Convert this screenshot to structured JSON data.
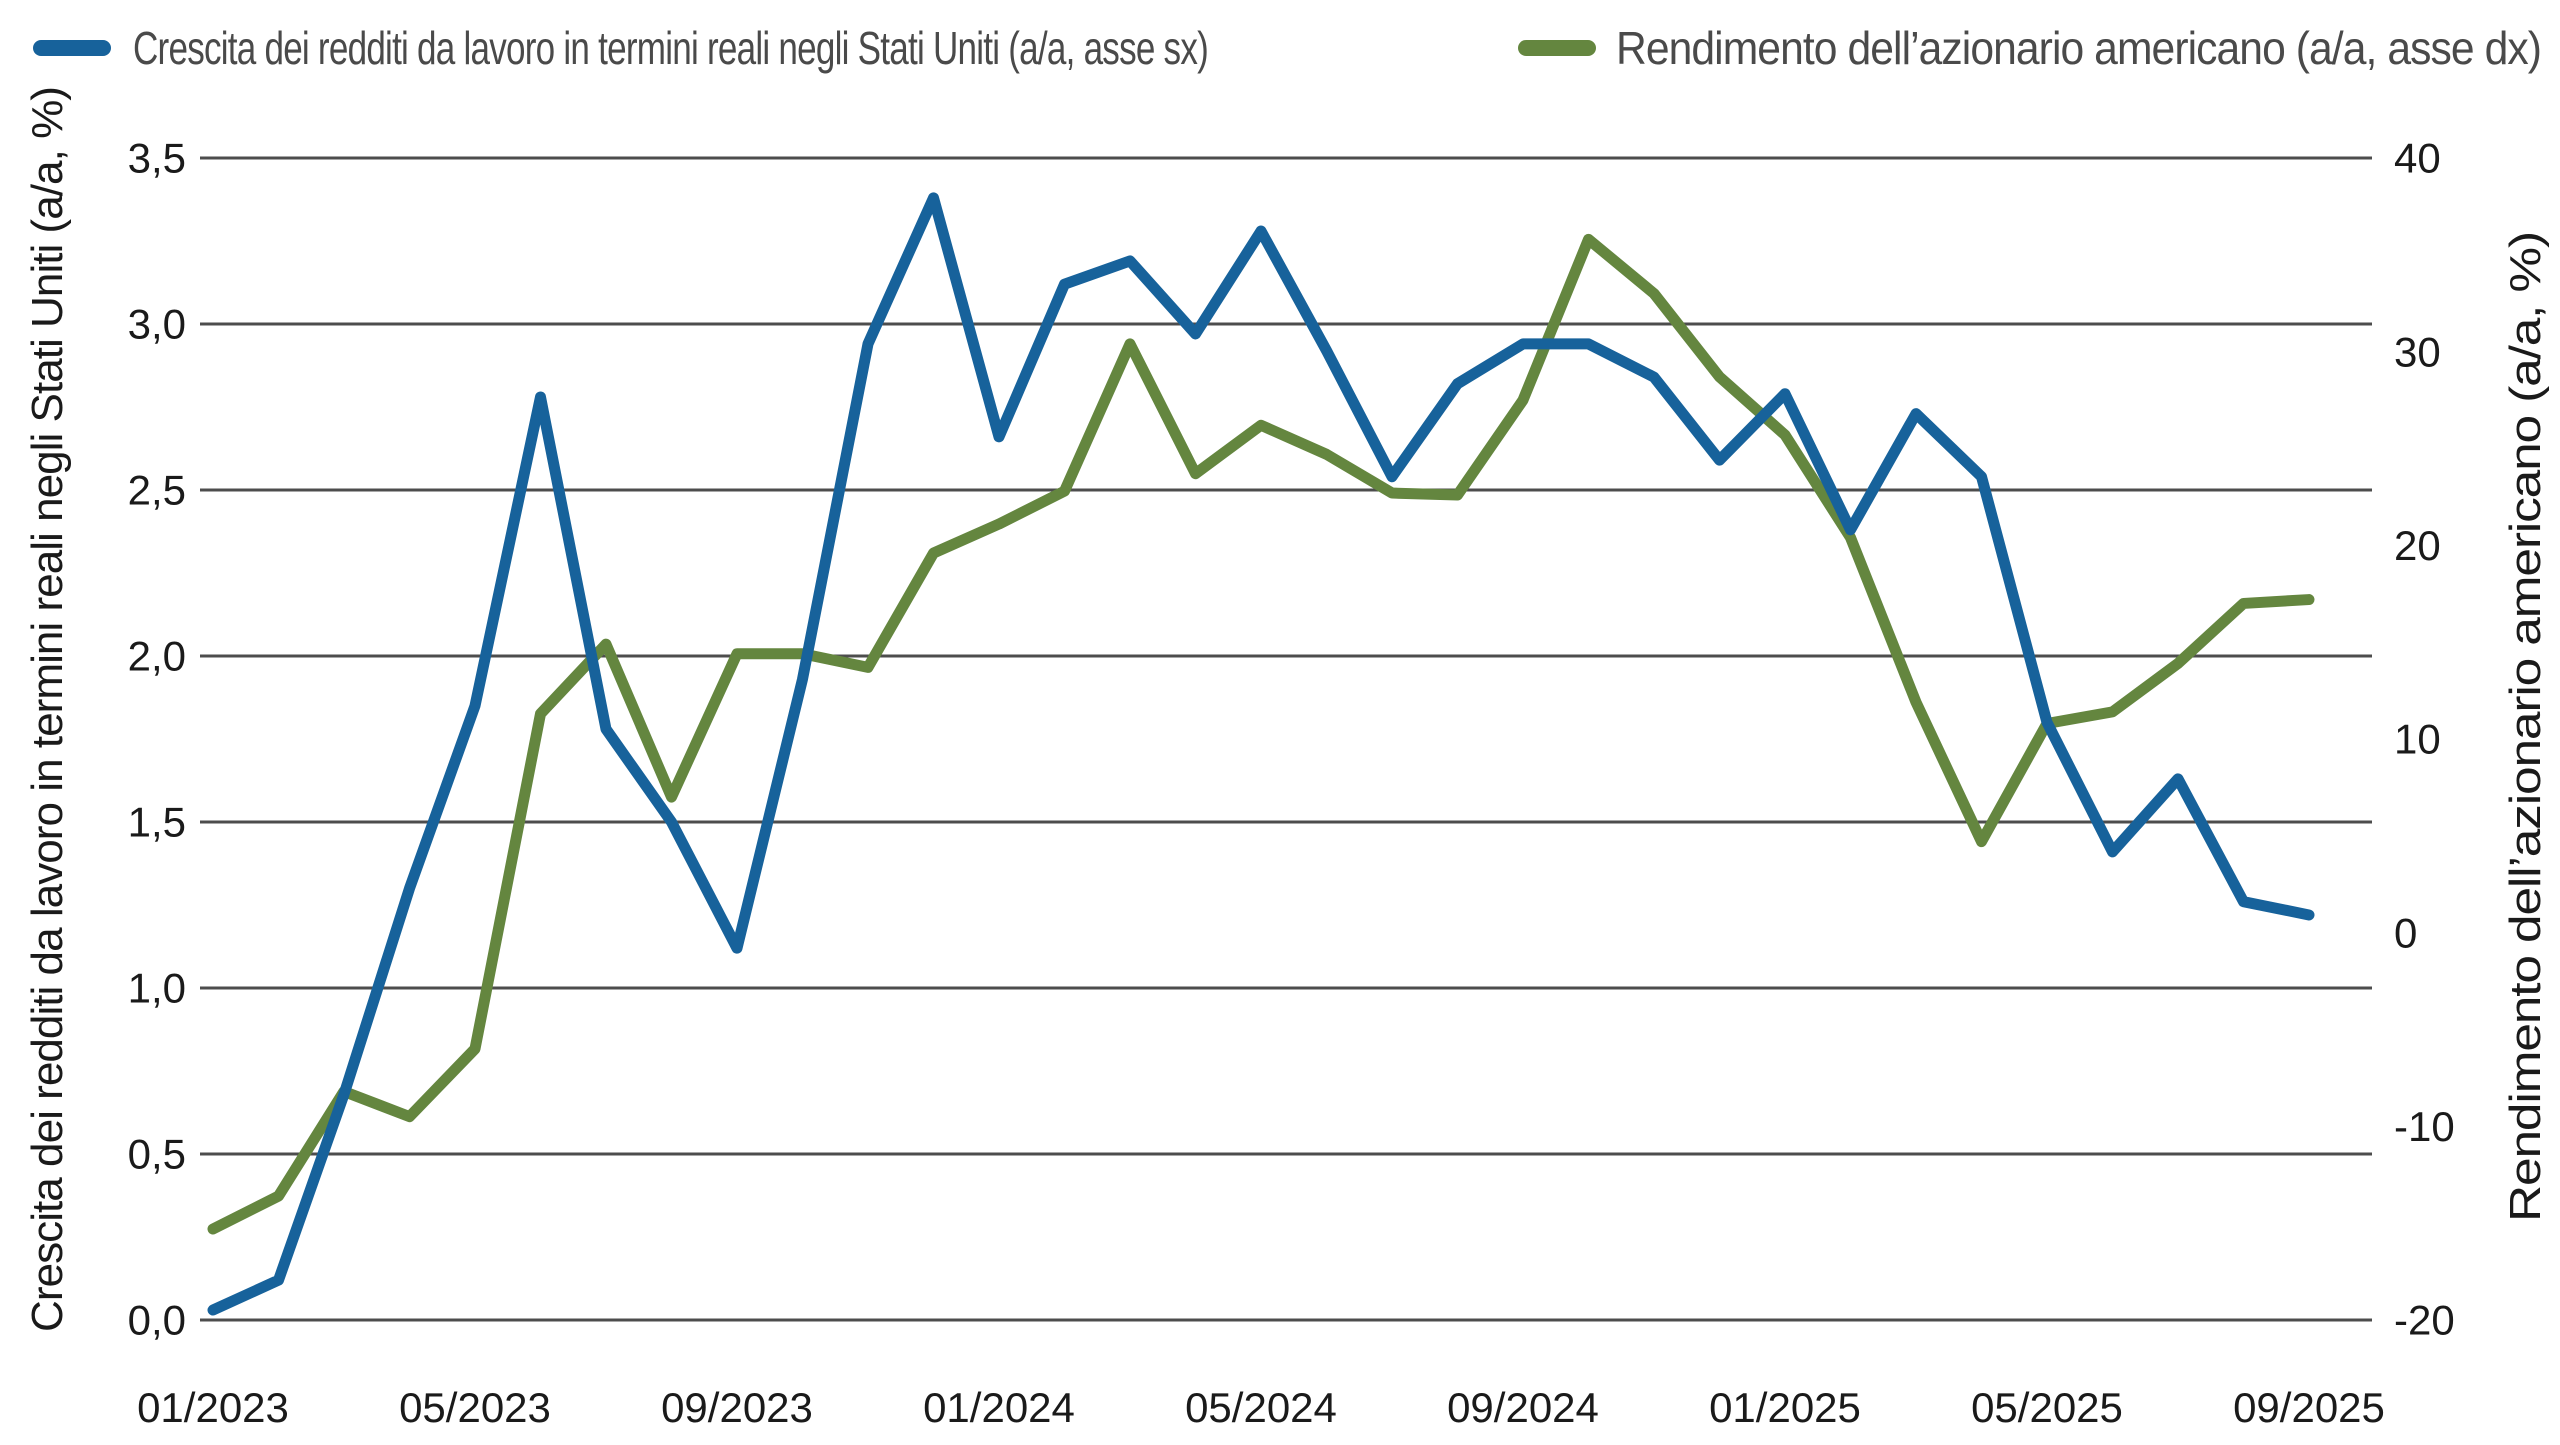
{
  "legend": {
    "items": [
      {
        "name": "labor-income-growth",
        "label": "Crescita dei redditi da lavoro in termini reali negli Stati Uniti (a/a, asse sx)",
        "color": "#17629b"
      },
      {
        "name": "us-equity-return",
        "label": "Rendimento dell’azionario americano (a/a, asse dx)",
        "color": "#64863f"
      }
    ]
  },
  "chart_data": {
    "type": "line",
    "title": "",
    "grid": "horizontal",
    "legend_position": "top",
    "x": [
      "01/2023",
      "02/2023",
      "03/2023",
      "04/2023",
      "05/2023",
      "06/2023",
      "07/2023",
      "08/2023",
      "09/2023",
      "10/2023",
      "11/2023",
      "12/2023",
      "01/2024",
      "02/2024",
      "03/2024",
      "04/2024",
      "05/2024",
      "06/2024",
      "07/2024",
      "08/2024",
      "09/2024",
      "10/2024",
      "11/2024",
      "12/2024",
      "01/2025",
      "02/2025",
      "03/2025",
      "04/2025",
      "05/2025",
      "06/2025",
      "07/2025",
      "08/2025",
      "09/2025"
    ],
    "x_axis": {
      "ticks": [
        {
          "label": "01/2023",
          "month_index": 0
        },
        {
          "label": "05/2023",
          "month_index": 4
        },
        {
          "label": "09/2023",
          "month_index": 8
        },
        {
          "label": "01/2024",
          "month_index": 12
        },
        {
          "label": "05/2024",
          "month_index": 16
        },
        {
          "label": "09/2024",
          "month_index": 20
        },
        {
          "label": "01/2025",
          "month_index": 24
        },
        {
          "label": "05/2025",
          "month_index": 28
        },
        {
          "label": "09/2025",
          "month_index": 32
        }
      ]
    },
    "left_axis": {
      "label": "Crescita dei redditi da lavoro in termini reali negli Stati Uniti (a/a, %)",
      "min": 0.0,
      "max": 3.5,
      "ticks": [
        {
          "label": "0,0",
          "value": 0.0
        },
        {
          "label": "0,5",
          "value": 0.5
        },
        {
          "label": "1,0",
          "value": 1.0
        },
        {
          "label": "1,5",
          "value": 1.5
        },
        {
          "label": "2,0",
          "value": 2.0
        },
        {
          "label": "2,5",
          "value": 2.5
        },
        {
          "label": "3,0",
          "value": 3.0
        },
        {
          "label": "3,5",
          "value": 3.5
        }
      ]
    },
    "right_axis": {
      "label": "Rendimento dell’azionario americano (a/a, %)",
      "min": -20,
      "max": 40,
      "ticks": [
        {
          "label": "40",
          "value": 40
        },
        {
          "label": "30",
          "value": 30
        },
        {
          "label": "20",
          "value": 20
        },
        {
          "label": "10",
          "value": 10
        },
        {
          "label": "0",
          "value": 0
        },
        {
          "label": "-10",
          "value": -10
        },
        {
          "label": "-20",
          "value": -20
        }
      ]
    },
    "series": [
      {
        "name": "labor-income-growth-line",
        "legend": "Crescita dei redditi da lavoro in termini reali negli Stati Uniti (a/a, asse sx)",
        "axis": "left",
        "color": "#17629b",
        "values": [
          0.03,
          0.12,
          0.68,
          1.3,
          1.85,
          2.78,
          1.78,
          1.5,
          1.12,
          1.93,
          2.94,
          3.38,
          2.66,
          3.12,
          3.19,
          2.97,
          3.28,
          2.92,
          2.54,
          2.82,
          2.94,
          2.94,
          2.84,
          2.59,
          2.79,
          2.38,
          2.73,
          2.54,
          1.8,
          1.41,
          1.63,
          1.26,
          1.22
        ]
      },
      {
        "name": "us-equity-return-line",
        "legend": "Rendimento dell’azionario americano (a/a, asse dx)",
        "axis": "right",
        "color": "#64863f",
        "values": [
          -15.3,
          -13.6,
          -8.2,
          -9.5,
          -6.0,
          11.3,
          14.9,
          7.0,
          14.4,
          14.4,
          13.7,
          19.6,
          21.1,
          22.8,
          30.4,
          23.7,
          26.2,
          24.7,
          22.7,
          22.6,
          27.5,
          35.8,
          33.0,
          28.7,
          25.7,
          20.4,
          11.9,
          4.7,
          10.8,
          11.4,
          13.9,
          17.0,
          17.2
        ]
      }
    ],
    "colors": {
      "gridline": "#4d4d4d",
      "axis_text": "#1a1a1a",
      "legend_text": "#4a4a4a",
      "background": "#ffffff"
    }
  }
}
